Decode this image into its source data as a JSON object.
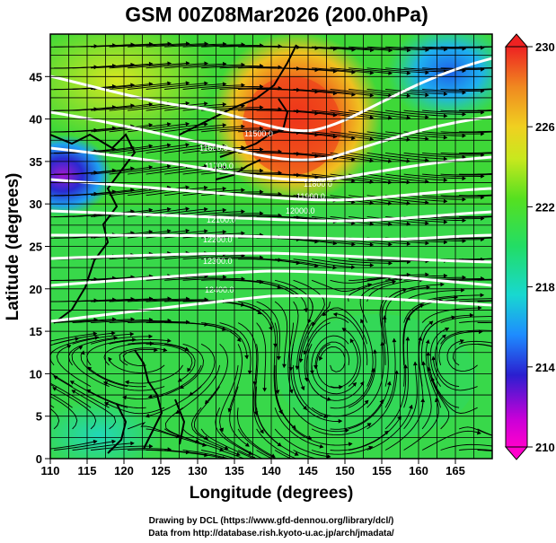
{
  "chart_data": {
    "type": "heatmap",
    "title": "GSM 00Z08Mar2026 (200.0hPa)",
    "xlabel": "Longitude (degrees)",
    "ylabel": "Latitude  (degrees)",
    "xlim": [
      110,
      170
    ],
    "ylim": [
      0,
      50
    ],
    "xticks": [
      "110",
      "115",
      "120",
      "125",
      "130",
      "135",
      "140",
      "145",
      "150",
      "155",
      "160",
      "165"
    ],
    "yticks": [
      "0",
      "5",
      "10",
      "15",
      "20",
      "25",
      "30",
      "35",
      "40",
      "45"
    ],
    "grid": true,
    "colorbar": {
      "range": [
        210,
        230
      ],
      "ticks": [
        "210",
        "214",
        "218",
        "222",
        "226",
        "230"
      ]
    },
    "contour_labels": [
      "11500.0",
      "11600.0",
      "11700.0",
      "11800.0",
      "11900.0",
      "12000.0",
      "12100.0",
      "12200.0",
      "12300.0",
      "12400.0"
    ],
    "overlays": [
      "wind streamlines",
      "height contours",
      "coastlines"
    ]
  },
  "credits": {
    "line1": "Drawing by DCL (https://www.gfd-dennou.org/library/dcl/)",
    "line2": "Data from http://database.rish.kyoto-u.ac.jp/arch/jmadata/"
  }
}
